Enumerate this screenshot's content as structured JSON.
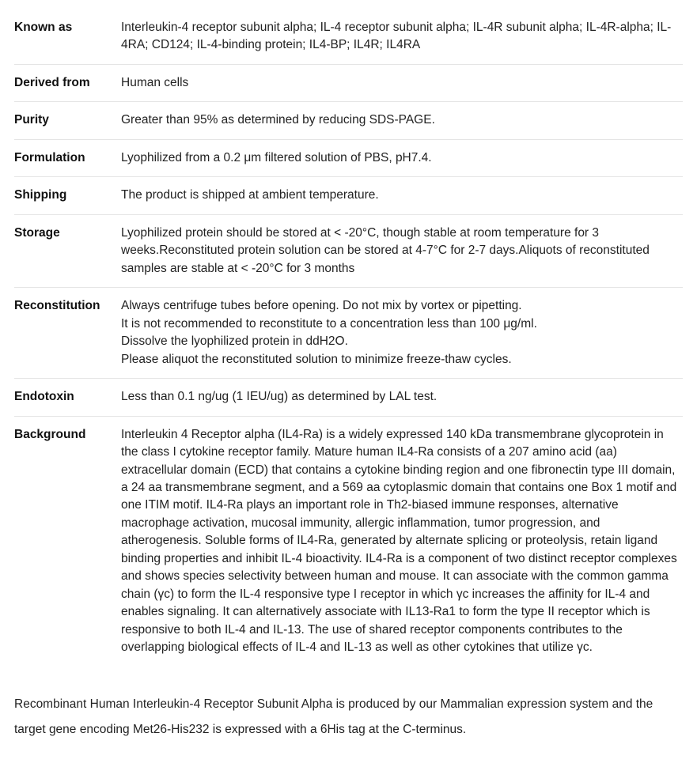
{
  "specs": [
    {
      "label": "Known as",
      "value": "Interleukin-4 receptor subunit alpha; IL-4 receptor subunit alpha; IL-4R subunit alpha; IL-4R-alpha; IL-4RA; CD124; IL-4-binding protein; IL4-BP; IL4R; IL4RA"
    },
    {
      "label": "Derived from",
      "value": "Human cells"
    },
    {
      "label": "Purity",
      "value": "Greater than 95% as determined by reducing SDS-PAGE."
    },
    {
      "label": "Formulation",
      "value": "Lyophilized from a 0.2 μm filtered solution of PBS, pH7.4."
    },
    {
      "label": "Shipping",
      "value": "The product is shipped at ambient temperature."
    },
    {
      "label": "Storage",
      "value": "Lyophilized protein should be stored at < -20°C, though stable at room temperature for 3 weeks.Reconstituted protein solution can be stored at 4-7°C for 2-7 days.Aliquots of reconstituted samples are stable at < -20°C for 3 months"
    },
    {
      "label": "Reconstitution",
      "lines": [
        "Always centrifuge tubes before opening. Do not mix by vortex or pipetting.",
        "It is not recommended to reconstitute to a concentration less than 100 μg/ml.",
        "Dissolve the lyophilized protein in ddH2O.",
        "Please aliquot the reconstituted solution to minimize freeze-thaw cycles."
      ]
    },
    {
      "label": "Endotoxin",
      "value": "Less than 0.1 ng/ug (1 IEU/ug) as determined by LAL test."
    },
    {
      "label": "Background",
      "value": "Interleukin 4 Receptor alpha (IL4-Ra) is a widely expressed 140 kDa transmembrane glycoprotein in the class I cytokine receptor family. Mature human IL4-Ra consists of a 207 amino acid (aa) extracellular domain (ECD) that contains a cytokine binding region and one fibronectin type III domain, a 24 aa transmembrane segment, and a 569 aa cytoplasmic domain that contains one Box 1 motif and one ITIM motif. IL4-Ra plays an important role in Th2-biased immune responses, alternative macrophage activation, mucosal immunity, allergic inflammation, tumor progression, and atherogenesis. Soluble forms of IL4-Ra, generated by alternate splicing or proteolysis, retain ligand binding properties and inhibit IL-4 bioactivity. IL4-Ra is a component of two distinct receptor complexes and shows species selectivity between human and mouse. It can associate with the common gamma chain (γc) to form the IL-4 responsive type I receptor in which γc increases the affinity for IL-4 and enables signaling. It can alternatively associate with IL13-Ra1 to form the type II receptor which is responsive to both IL-4 and IL-13. The use of shared receptor components contributes to the overlapping biological effects of IL-4 and IL-13 as well as other cytokines that utilize γc."
    }
  ],
  "description": "Recombinant Human Interleukin-4 Receptor Subunit Alpha is produced by our Mammalian expression system and the target gene encoding Met26-His232 is expressed with a 6His tag at the C-terminus."
}
